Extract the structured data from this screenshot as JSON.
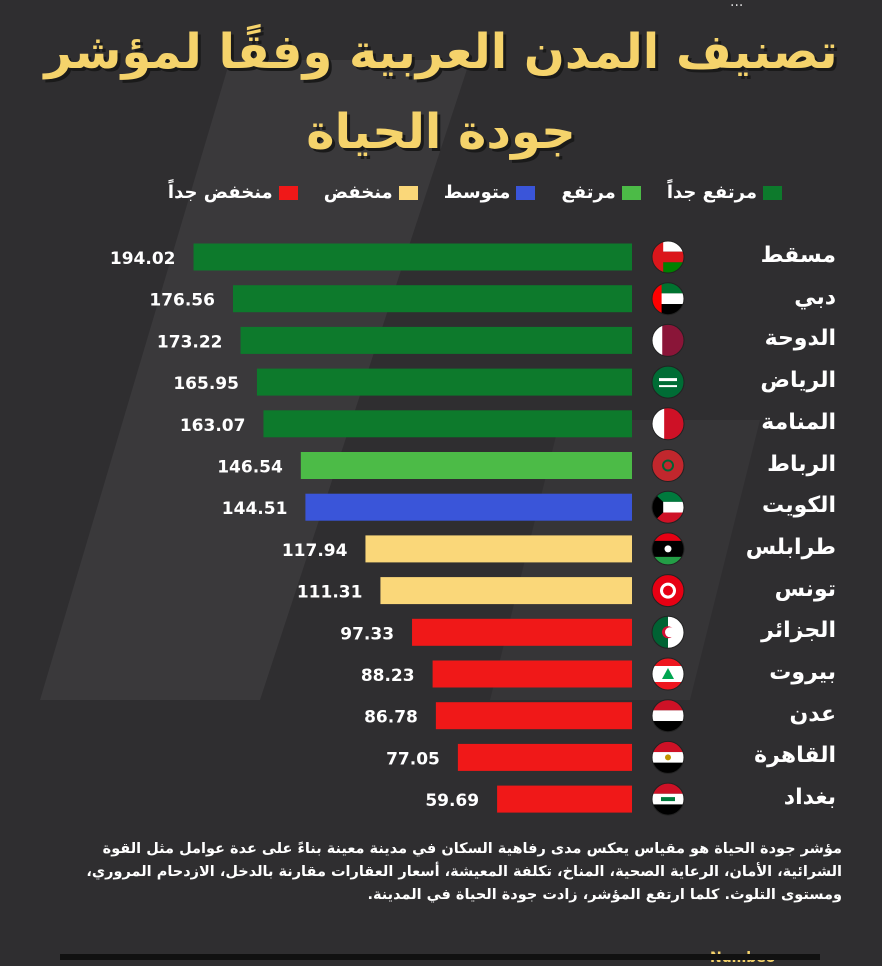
{
  "title_line1": "تصنيف المدن العربية وفقًا لمؤشر",
  "title_line2": "جودة الحياة",
  "legend": [
    {
      "label": "مرتفع جداً",
      "color": "#0d7a2c"
    },
    {
      "label": "مرتفع",
      "color": "#4cbb47"
    },
    {
      "label": "متوسط",
      "color": "#3a55d9"
    },
    {
      "label": "منخفض",
      "color": "#fad779"
    },
    {
      "label": "منخفض جداً",
      "color": "#f01818"
    }
  ],
  "chart_data": {
    "type": "bar",
    "orientation": "horizontal",
    "categories": [
      "مسقط",
      "دبي",
      "الدوحة",
      "الرياض",
      "المنامة",
      "الرباط",
      "الكويت",
      "طرابلس",
      "تونس",
      "الجزائر",
      "بيروت",
      "عدن",
      "القاهرة",
      "بغداد"
    ],
    "values": [
      194.02,
      176.56,
      173.22,
      165.95,
      163.07,
      146.54,
      144.51,
      117.94,
      111.31,
      97.33,
      88.23,
      86.78,
      77.05,
      59.69
    ],
    "value_labels": [
      "194.02",
      "176.56",
      "173.22",
      "165.95",
      "163.07",
      "146.54",
      "144.51",
      "117.94",
      "111.31",
      "97.33",
      "88.23",
      "86.78",
      "77.05",
      "59.69"
    ],
    "levels": [
      "مرتفع جداً",
      "مرتفع جداً",
      "مرتفع جداً",
      "مرتفع جداً",
      "مرتفع جداً",
      "مرتفع",
      "متوسط",
      "منخفض",
      "منخفض",
      "منخفض جداً",
      "منخفض جداً",
      "منخفض جداً",
      "منخفض جداً",
      "منخفض جداً"
    ],
    "flags": [
      "oman-flag",
      "uae-flag",
      "qatar-flag",
      "saudi-flag",
      "bahrain-flag",
      "morocco-flag",
      "kuwait-flag",
      "libya-flag",
      "tunisia-flag",
      "algeria-flag",
      "lebanon-flag",
      "yemen-flag",
      "egypt-flag",
      "iraq-flag"
    ],
    "grid": false
  },
  "footnote": "مؤشر جودة الحياة هو مقياس يعكس مدى رفاهية السكان في مدينة معينة بناءً على عدة عوامل مثل القوة الشرائية، الأمان، الرعاية الصحية، المناخ، تكلفة المعيشة، أسعار العقارات مقارنة بالدخل، الازدحام المروري، ومستوى التلوث. كلما ارتفع المؤشر، زادت جودة الحياة في المدينة.",
  "brand_partial": "Numbeo"
}
